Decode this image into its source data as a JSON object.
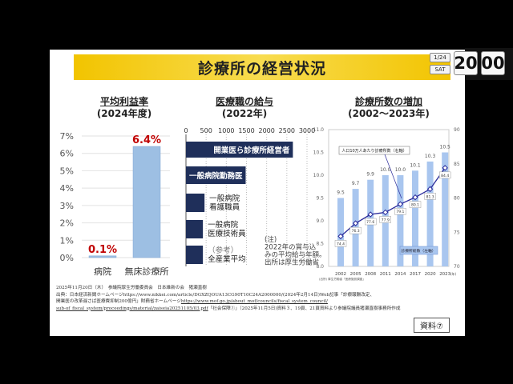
{
  "slide_title": "診療所の経営状況",
  "clock": {
    "date": "1/24",
    "weekday": "SAT",
    "hour": "20",
    "minute": "00"
  },
  "doc_label": "資料⑦",
  "footer": {
    "line1": "2025年11月20日（木）　参議院厚生労働委員会　日本維新の会　猪瀬直樹",
    "line2": "出典：日本経済新聞ホームページhttps://www.nikkei.com/article/DGXZQOUA13CG90T10C24A2000000/(2024年2月14日)Web記事「診療報酬改定、",
    "line3a": "開業医の改革遅さば医療費抑制200億円」財務省ホームページ",
    "line3b": "https://www.mof.go.jp/about_mof/councils/fiscal_system_council/",
    "line4a": "sub-of_fiscal_system/proceedings/material/zaiseia20251105/03.pdf",
    "line4b": "「社会保障①」（2025年11月5日)資料３、19頁、21頁資料より参議院議員猪瀬直樹事務所作成"
  },
  "chart_data": [
    {
      "type": "bar",
      "title": "平均利益率",
      "subtitle": "(2024年度)",
      "categories": [
        "病院",
        "無床診療所"
      ],
      "values": [
        0.1,
        6.4
      ],
      "data_labels": [
        "0.1%",
        "6.4%"
      ],
      "ylim": [
        0,
        7
      ],
      "yticks": [
        "0%",
        "1%",
        "2%",
        "3%",
        "4%",
        "5%",
        "6%",
        "7%"
      ],
      "grid": true,
      "colors": {
        "bar": "#9dbfe3",
        "label": "#c00000"
      }
    },
    {
      "type": "bar",
      "orientation": "horizontal",
      "title": "医療職の給与",
      "subtitle": "(2022年)",
      "categories": [
        "開業医ら診療所経営者",
        "一般病院勤務医",
        "一般病院\n看護職員",
        "一般病院\n医療技術員",
        "（参考）\n全産業平均"
      ],
      "values": [
        2650,
        1480,
        460,
        420,
        420
      ],
      "xlim": [
        0,
        3000
      ],
      "xticks": [
        "0",
        "500",
        "1000",
        "1500",
        "2000",
        "2500",
        "3000"
      ],
      "note": [
        "(注)",
        "2022年の賞与込",
        "みの平均給与年額。",
        "出所は厚生労働省"
      ],
      "colors": {
        "bar": "#1f2f5a"
      }
    },
    {
      "type": "bar+line",
      "title": "診療所数の増加",
      "subtitle": "(2002〜2023年)",
      "categories": [
        "2002",
        "2005",
        "2008",
        "2011",
        "2014",
        "2017",
        "2020",
        "2023"
      ],
      "x_unit": "(年)",
      "series": [
        {
          "name": "診療所総数（左軸）",
          "type": "bar",
          "values": [
            9.5,
            9.7,
            9.9,
            10.0,
            10.0,
            10.1,
            10.3,
            10.5
          ],
          "labels": [
            "9.5",
            "9.7",
            "9.9",
            "10.0",
            "10.0",
            "10.1",
            "10.3",
            "10.5"
          ]
        },
        {
          "name": "人口10万人あたり診療所数（右軸）",
          "type": "line",
          "values": [
            74.4,
            76.3,
            77.6,
            77.9,
            79.1,
            80.1,
            81.3,
            84.4
          ],
          "labels": [
            "74.4",
            "76.3",
            "77.6",
            "77.9",
            "79.1",
            "80.1",
            "81.3",
            "84.4"
          ]
        }
      ],
      "ylim_left": [
        8.0,
        11.0
      ],
      "yticks_left": [
        "8.0",
        "8.5",
        "9.0",
        "9.5",
        "10.0",
        "10.5",
        "11.0"
      ],
      "ylim_right": [
        70,
        90
      ],
      "yticks_right": [
        "70",
        "75",
        "80",
        "85",
        "90"
      ],
      "ylabel_left": "(万施設)",
      "source": "(出所) 厚生労働省「医療施設調査」",
      "colors": {
        "bar": "#a9c6ef",
        "line": "#2a2a9a"
      }
    }
  ]
}
